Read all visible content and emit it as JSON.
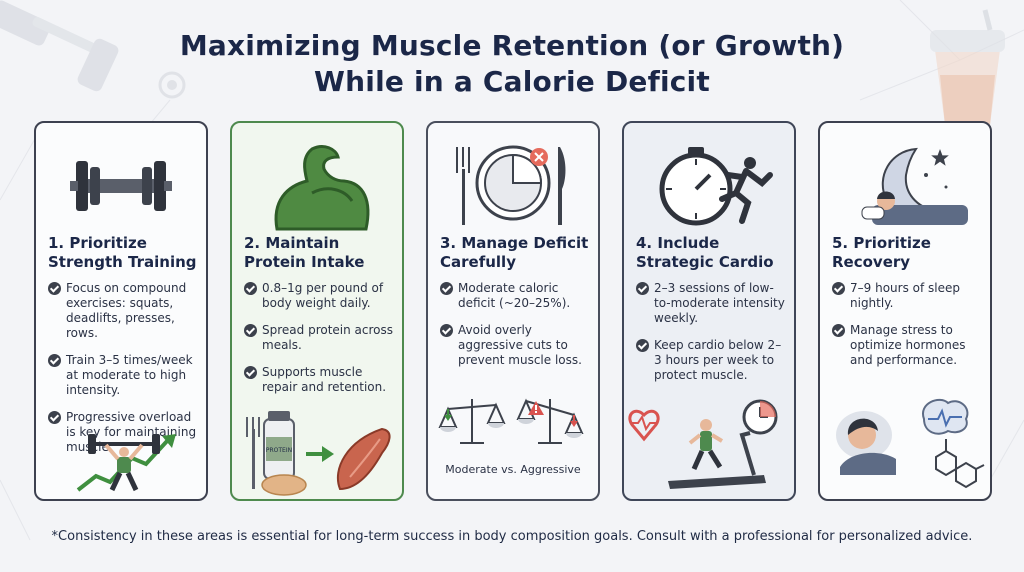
{
  "title_line1": "Maximizing Muscle Retention (or Growth)",
  "title_line2": "While in a Calorie Deficit",
  "cards": [
    {
      "title_line1": "1. Prioritize",
      "title_line2": "Strength Training",
      "icon_top": "dumbbell-icon",
      "icon_bottom": "weightlifter-growth-icon",
      "points": [
        "Focus on compound exercises: squats, deadlifts, presses, rows.",
        "Train 3–5 times/week at moderate to high intensity.",
        "Progressive overload is key for maintaining muscle."
      ]
    },
    {
      "title_line1": "2. Maintain",
      "title_line2": "Protein Intake",
      "icon_top": "flexed-bicep-icon",
      "icon_bottom": "protein-to-muscle-icon",
      "bottle_label": "PROTEIN",
      "points": [
        "0.8–1g per pound of body weight daily.",
        "Spread protein across meals.",
        "Supports muscle repair and retention."
      ]
    },
    {
      "title_line1": "3. Manage Deficit",
      "title_line2": "Carefully",
      "icon_top": "plate-fork-knife-icon",
      "icon_bottom": "balance-scales-icon",
      "caption": "Moderate vs. Aggressive",
      "points": [
        "Moderate caloric deficit (~20–25%).",
        "Avoid overly aggressive cuts to prevent muscle loss."
      ]
    },
    {
      "title_line1": "4. Include",
      "title_line2": "Strategic Cardio",
      "icon_top": "stopwatch-runner-icon",
      "icon_bottom": "treadmill-runner-icon",
      "points": [
        "2–3 sessions of low-to-moderate intensity weekly.",
        "Keep cardio below 2–3 hours per week to protect muscle."
      ]
    },
    {
      "title_line1": "5. Prioritize",
      "title_line2": "Recovery",
      "icon_top": "moon-sleep-icon",
      "icon_bottom": "sleeping-person-icon",
      "points": [
        "7–9 hours of sleep nightly.",
        "Manage stress to optimize hormones and performance."
      ]
    }
  ],
  "footer": "*Consistency in these areas is essential for long-term success in body composition goals. Consult with a professional for personalized advice.",
  "colors": {
    "background": "#f3f4f7",
    "title": "#1b2748",
    "green_border": "#4e8a4e",
    "accent_red": "#d9534f",
    "accent_green": "#3f8f3f"
  }
}
